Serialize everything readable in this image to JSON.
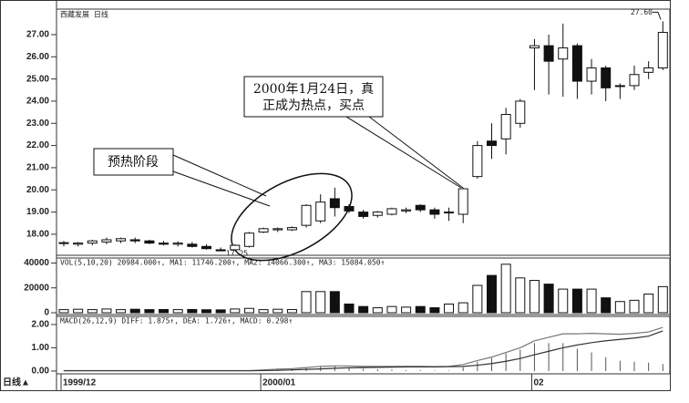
{
  "chart_data": [
    {
      "type": "candlestick",
      "title": "西藏发展 日线",
      "xlabel": "日线▲",
      "categories": [
        "1999/12",
        null,
        null,
        null,
        null,
        null,
        null,
        null,
        null,
        null,
        null,
        null,
        null,
        null,
        "2000/01",
        null,
        null,
        null,
        null,
        null,
        null,
        null,
        null,
        null,
        null,
        null,
        null,
        null,
        null,
        null,
        null,
        null,
        null,
        "02",
        null,
        null,
        null,
        null,
        null,
        null,
        null,
        null,
        null
      ],
      "open": [
        17.58,
        17.55,
        17.6,
        17.65,
        17.7,
        17.75,
        17.7,
        17.6,
        17.55,
        17.55,
        17.45,
        17.3,
        17.3,
        17.45,
        18.1,
        18.2,
        18.2,
        18.4,
        18.6,
        19.6,
        19.25,
        19.0,
        18.85,
        18.9,
        19.05,
        19.3,
        19.1,
        19.0,
        18.9,
        20.6,
        22.2,
        22.3,
        23.0,
        26.4,
        26.5,
        25.9,
        26.5,
        24.9,
        25.5,
        24.7,
        24.7,
        25.3,
        25.5
      ],
      "high": [
        17.7,
        17.65,
        17.75,
        17.85,
        17.85,
        17.85,
        17.75,
        17.7,
        17.68,
        17.65,
        17.55,
        17.4,
        17.55,
        18.1,
        18.3,
        18.3,
        18.35,
        19.35,
        19.8,
        20.1,
        19.35,
        19.1,
        19.05,
        19.2,
        19.2,
        19.35,
        19.2,
        19.2,
        20.1,
        22.2,
        23.0,
        23.7,
        24.1,
        26.8,
        27.0,
        27.5,
        26.6,
        25.9,
        25.6,
        24.8,
        25.6,
        25.8,
        27.6
      ],
      "low": [
        17.45,
        17.45,
        17.5,
        17.55,
        17.6,
        17.6,
        17.55,
        17.5,
        17.45,
        17.4,
        17.3,
        17.25,
        17.3,
        17.4,
        18.05,
        18.1,
        18.15,
        18.3,
        18.5,
        18.8,
        18.95,
        18.7,
        18.75,
        18.85,
        18.95,
        19.0,
        18.7,
        18.6,
        18.5,
        20.5,
        21.4,
        21.6,
        22.8,
        24.5,
        24.3,
        24.2,
        24.1,
        24.3,
        24.0,
        24.1,
        24.5,
        25.0,
        25.4
      ],
      "close": [
        17.62,
        17.6,
        17.7,
        17.75,
        17.8,
        17.7,
        17.6,
        17.55,
        17.6,
        17.45,
        17.35,
        17.25,
        17.5,
        18.05,
        18.25,
        18.25,
        18.3,
        19.3,
        19.45,
        19.2,
        19.05,
        18.8,
        19.0,
        19.15,
        19.1,
        19.1,
        18.9,
        19.0,
        20.05,
        22.0,
        22.0,
        23.4,
        24.0,
        26.5,
        25.8,
        26.4,
        24.9,
        25.5,
        24.6,
        24.7,
        25.2,
        25.5,
        27.1
      ],
      "ylim": [
        17.05,
        28.15
      ],
      "yticks": [
        {
          "value": 18,
          "label": "18.00"
        },
        {
          "value": 19,
          "label": "19.00"
        },
        {
          "value": 20,
          "label": "20.00"
        },
        {
          "value": 21,
          "label": "21.00"
        },
        {
          "value": 22,
          "label": "22.00"
        },
        {
          "value": 23,
          "label": "23.00"
        },
        {
          "value": 24,
          "label": "24.00"
        },
        {
          "value": 25,
          "label": "25.00"
        },
        {
          "value": 26,
          "label": "26.00"
        },
        {
          "value": 27,
          "label": "27.00"
        }
      ],
      "extreme_labels": [
        {
          "value": 27.6,
          "label": "27.60"
        },
        {
          "value": 17.25,
          "label": "17.25"
        }
      ],
      "annotations": [
        {
          "text": "预热阶段"
        },
        {
          "lines": [
            "2000年1月24日，真",
            "正成为热点，买点"
          ]
        }
      ]
    },
    {
      "type": "bar",
      "legend_text": "VOL(5,10,20) 20984.000↑, MA1: 11746.200↑, MA2: 14066.300↑, MA3: 15084.050↑",
      "values": [
        2500,
        2800,
        2500,
        3000,
        2500,
        2800,
        2500,
        2600,
        2500,
        2600,
        2400,
        2300,
        3000,
        3500,
        2500,
        2800,
        2600,
        17000,
        17000,
        17000,
        7000,
        5000,
        4000,
        5000,
        4500,
        5000,
        4000,
        7000,
        8000,
        22000,
        30000,
        39000,
        28000,
        26000,
        23000,
        19000,
        19000,
        19000,
        12000,
        9000,
        10000,
        15000,
        21000
      ],
      "ylim": [
        0,
        44000
      ],
      "yticks": [
        0,
        20000,
        40000
      ]
    },
    {
      "type": "line",
      "legend_text": "MACD(26,12,9) DIFF: 1.875↑, DEA: 1.726↑, MACD: 0.298↑",
      "series": [
        {
          "color": "#555555",
          "style": "bar",
          "values": [
            0.02,
            0.02,
            0.02,
            0.02,
            0.02,
            0.02,
            0.02,
            0.02,
            0.02,
            0.02,
            0.02,
            0.02,
            0.02,
            0.04,
            0.06,
            0.1,
            0.1,
            0.16,
            0.22,
            0.2,
            0.16,
            0.1,
            0.08,
            0.06,
            0.04,
            0.04,
            0.02,
            0.02,
            0.16,
            0.4,
            0.56,
            0.76,
            0.92,
            1.2,
            1.2,
            1.2,
            0.96,
            0.8,
            0.6,
            0.44,
            0.4,
            0.36,
            0.298
          ]
        },
        {
          "color": "#777777",
          "style": "line",
          "values": [
            0.02,
            0.02,
            0.02,
            0.02,
            0.02,
            0.02,
            0.02,
            0.02,
            0.02,
            0.02,
            0.02,
            0.02,
            0.02,
            0.02,
            0.05,
            0.08,
            0.1,
            0.15,
            0.2,
            0.22,
            0.22,
            0.2,
            0.2,
            0.2,
            0.2,
            0.2,
            0.19,
            0.2,
            0.28,
            0.45,
            0.6,
            0.8,
            1.0,
            1.3,
            1.45,
            1.6,
            1.6,
            1.62,
            1.6,
            1.58,
            1.62,
            1.68,
            1.875
          ]
        },
        {
          "color": "#333333",
          "style": "line",
          "values": [
            0.01,
            0.01,
            0.01,
            0.01,
            0.01,
            0.01,
            0.01,
            0.01,
            0.01,
            0.01,
            0.01,
            0.01,
            0.01,
            0.01,
            0.02,
            0.03,
            0.05,
            0.07,
            0.09,
            0.12,
            0.14,
            0.15,
            0.16,
            0.17,
            0.18,
            0.18,
            0.18,
            0.19,
            0.2,
            0.25,
            0.32,
            0.42,
            0.54,
            0.7,
            0.85,
            1.0,
            1.12,
            1.22,
            1.3,
            1.36,
            1.42,
            1.5,
            1.726
          ]
        }
      ],
      "ylim": [
        -0.12,
        2.35
      ],
      "yticks": [
        {
          "value": 0,
          "label": "0.00"
        },
        {
          "value": 1,
          "label": "1.00"
        },
        {
          "value": 2,
          "label": "2.00"
        }
      ]
    }
  ]
}
